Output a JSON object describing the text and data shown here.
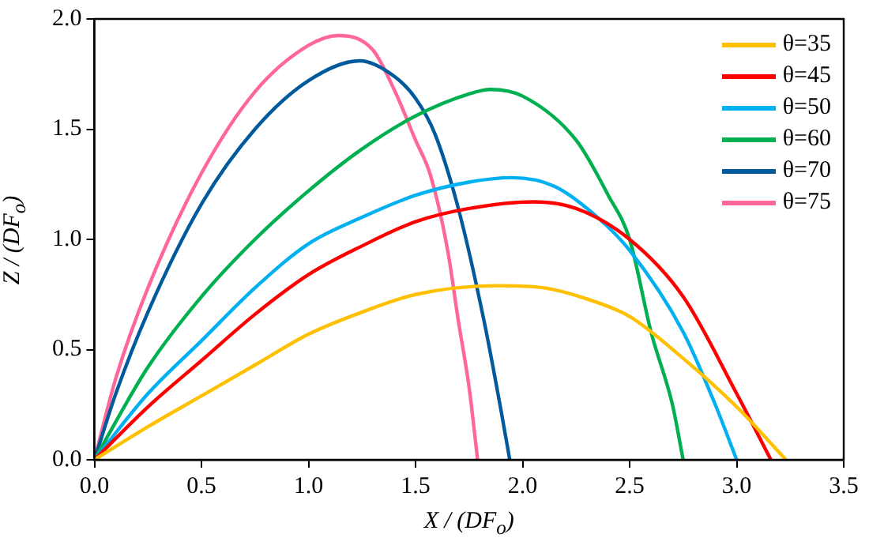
{
  "chart_data": {
    "type": "line",
    "xlabel": "X / (DF$_{o}$)",
    "ylabel": "Z / (DF$_{o}$)",
    "xlim": [
      0,
      3.5
    ],
    "xticks": [
      {
        "value": 0,
        "label": "0.0"
      },
      {
        "value": 0.5,
        "label": "0.5"
      },
      {
        "value": 1,
        "label": "1.0"
      },
      {
        "value": 1.5,
        "label": "1.5"
      },
      {
        "value": 2,
        "label": "2.0"
      },
      {
        "value": 2.5,
        "label": "2.5"
      },
      {
        "value": 3,
        "label": "3.0"
      },
      {
        "value": 3.5,
        "label": "3.5"
      }
    ],
    "ylim": [
      0,
      2
    ],
    "yticks": [
      {
        "value": 0,
        "label": "0.0"
      },
      {
        "value": 0.5,
        "label": "0.5"
      },
      {
        "value": 1,
        "label": "1.0"
      },
      {
        "value": 1.5,
        "label": "1.5"
      },
      {
        "value": 2,
        "label": "2.0"
      }
    ],
    "grid": false,
    "legend": "top right",
    "marker": "none",
    "series": [
      {
        "name": "θ=35",
        "color": "#ffc000",
        "x": [
          0,
          0.25,
          0.5,
          0.75,
          1.0,
          1.25,
          1.5,
          1.88,
          2.1,
          2.3,
          2.5,
          2.75,
          3.0,
          3.23
        ],
        "values": [
          0,
          0.15,
          0.29,
          0.43,
          0.57,
          0.67,
          0.75,
          0.79,
          0.78,
          0.73,
          0.65,
          0.46,
          0.24,
          0
        ]
      },
      {
        "name": "θ=45",
        "color": "#ff0000",
        "x": [
          0,
          0.25,
          0.5,
          0.75,
          1.0,
          1.25,
          1.5,
          1.75,
          2.05,
          2.25,
          2.5,
          2.75,
          3.0,
          3.16
        ],
        "values": [
          0,
          0.24,
          0.45,
          0.66,
          0.84,
          0.97,
          1.08,
          1.14,
          1.17,
          1.14,
          1.0,
          0.74,
          0.3,
          0
        ]
      },
      {
        "name": "θ=50",
        "color": "#00b0f0",
        "x": [
          0,
          0.25,
          0.5,
          0.75,
          1.0,
          1.25,
          1.5,
          1.75,
          1.95,
          2.15,
          2.35,
          2.5,
          2.75,
          2.9,
          3.0
        ],
        "values": [
          0,
          0.3,
          0.54,
          0.78,
          0.98,
          1.1,
          1.2,
          1.26,
          1.28,
          1.24,
          1.1,
          0.95,
          0.58,
          0.25,
          0
        ]
      },
      {
        "name": "θ=60",
        "color": "#00b050",
        "x": [
          0,
          0.25,
          0.5,
          0.75,
          1.0,
          1.25,
          1.5,
          1.75,
          1.85,
          2.0,
          2.25,
          2.4,
          2.5,
          2.6,
          2.7,
          2.75
        ],
        "values": [
          0,
          0.42,
          0.74,
          1.0,
          1.22,
          1.41,
          1.56,
          1.66,
          1.68,
          1.65,
          1.45,
          1.2,
          1.0,
          0.58,
          0.25,
          0
        ]
      },
      {
        "name": "θ=70",
        "color": "#005a9c",
        "x": [
          0,
          0.1,
          0.25,
          0.5,
          0.75,
          1.0,
          1.24,
          1.4,
          1.5,
          1.59,
          1.7,
          1.82,
          1.9,
          1.94
        ],
        "values": [
          0,
          0.3,
          0.67,
          1.16,
          1.5,
          1.72,
          1.81,
          1.74,
          1.64,
          1.48,
          1.14,
          0.63,
          0.22,
          0
        ]
      },
      {
        "name": "θ=75",
        "color": "#ff6699",
        "x": [
          0,
          0.1,
          0.25,
          0.5,
          0.75,
          1.0,
          1.14,
          1.3,
          1.4,
          1.5,
          1.57,
          1.65,
          1.7,
          1.75,
          1.79
        ],
        "values": [
          0,
          0.37,
          0.78,
          1.3,
          1.67,
          1.88,
          1.925,
          1.86,
          1.68,
          1.45,
          1.29,
          0.95,
          0.63,
          0.33,
          0
        ]
      }
    ]
  }
}
